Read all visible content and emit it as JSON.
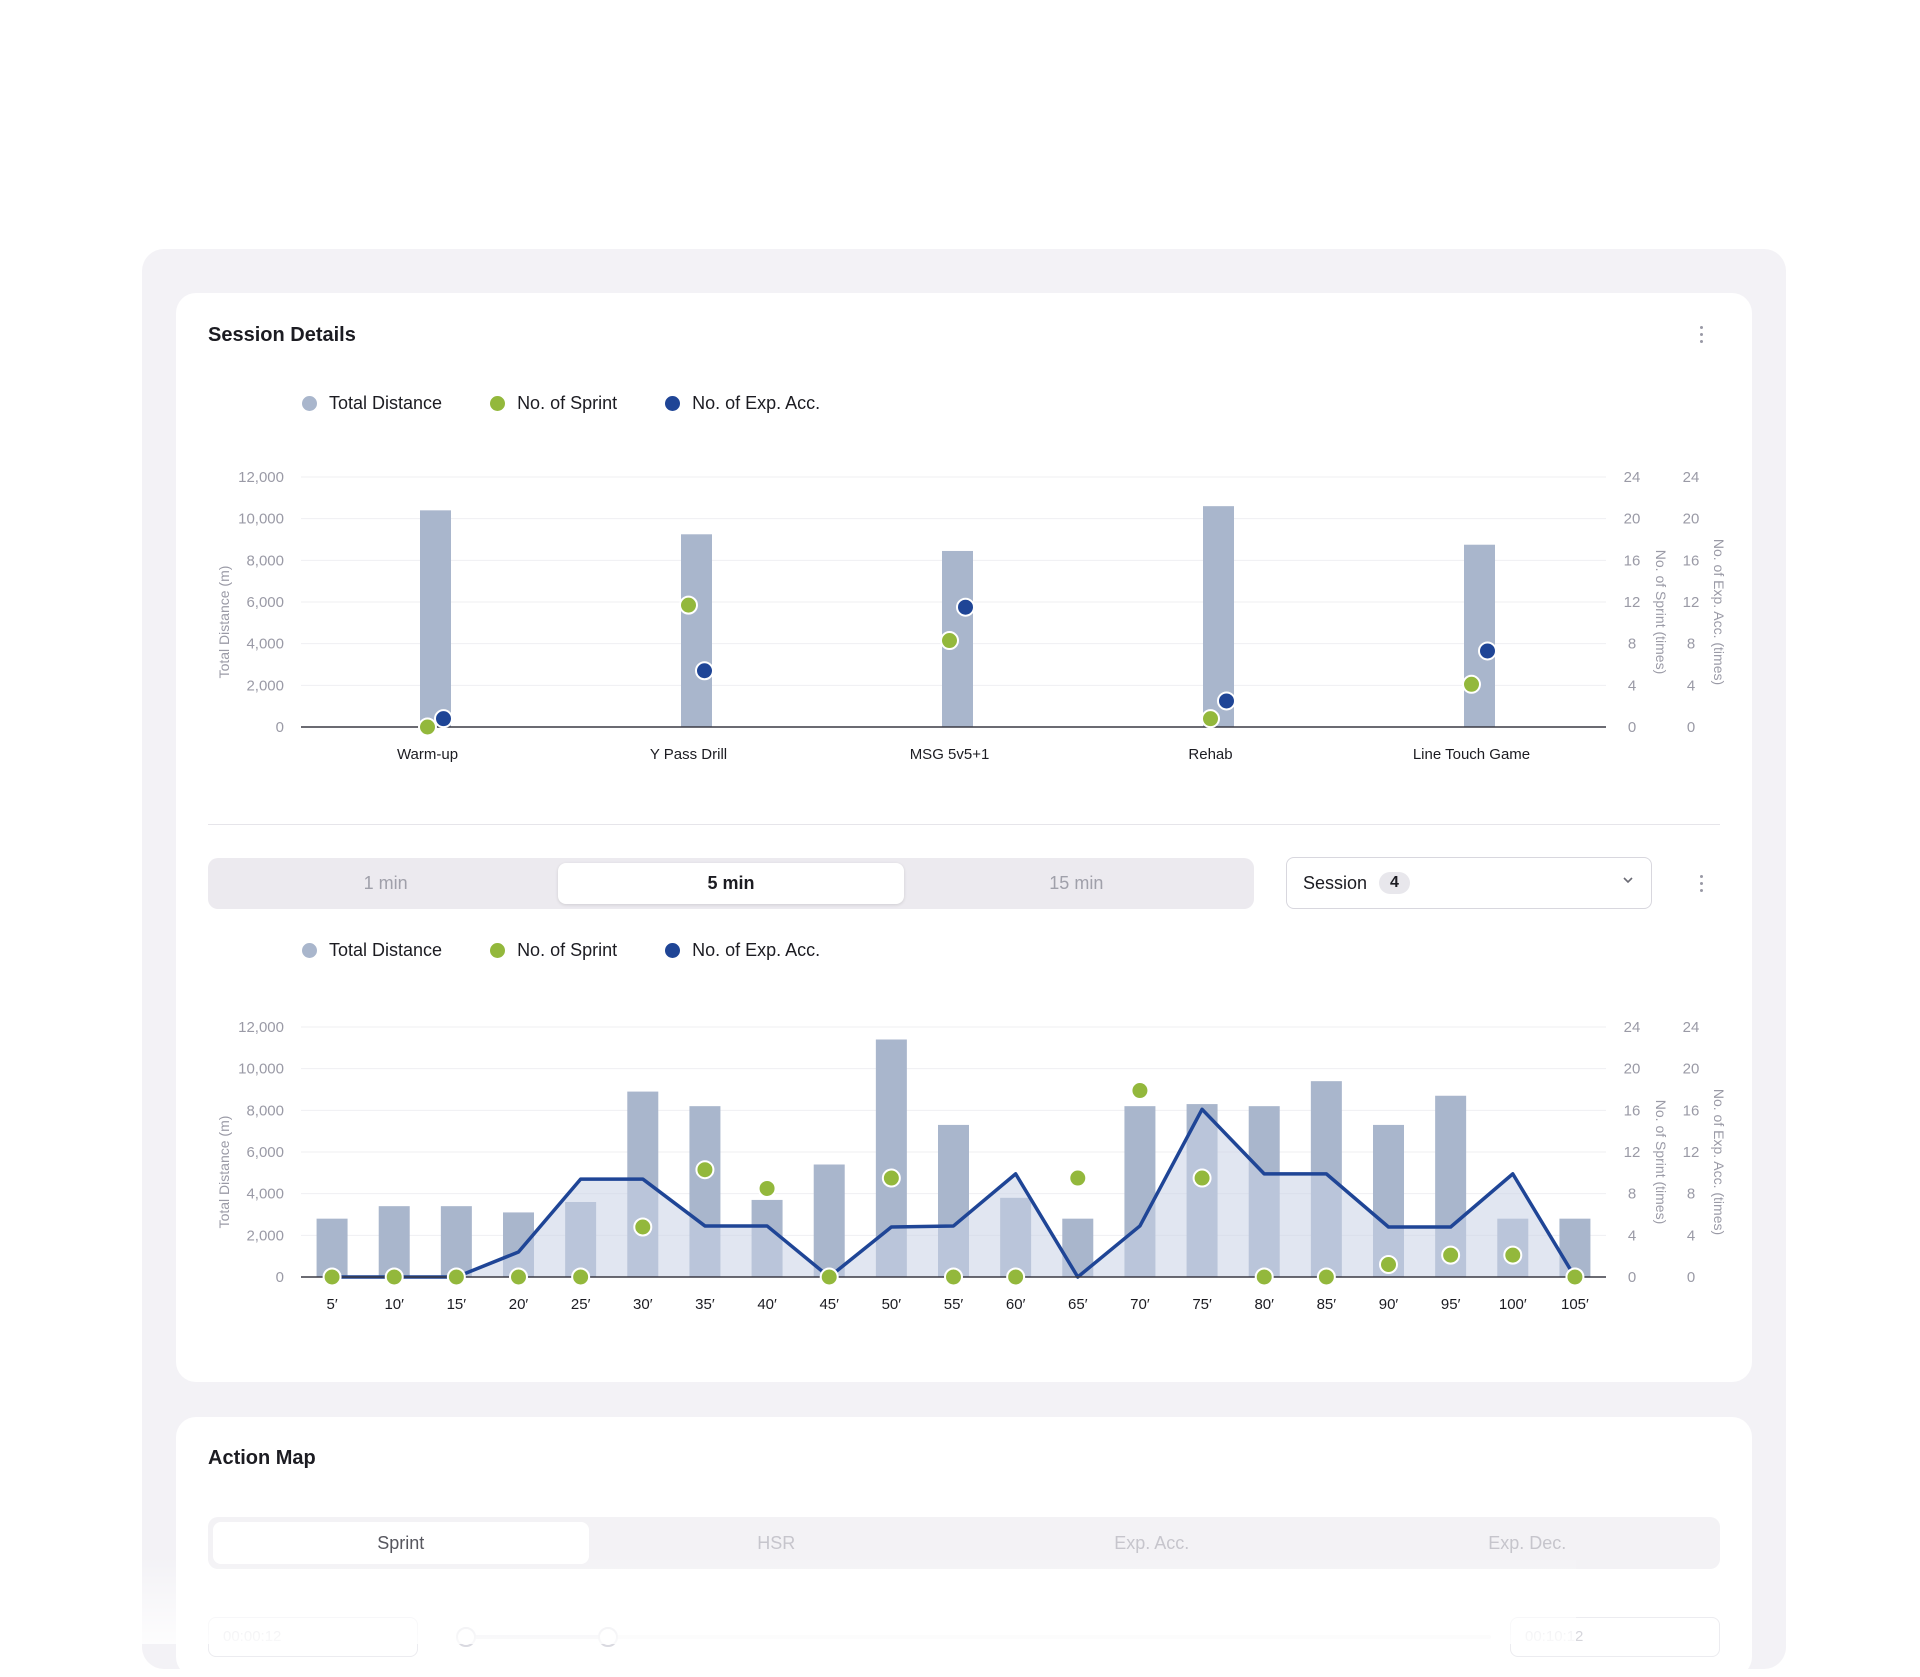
{
  "session_card": {
    "title": "Session Details",
    "legend": [
      {
        "label": "Total Distance",
        "color": "#a9b6cc"
      },
      {
        "label": "No. of Sprint",
        "color": "#93b83c"
      },
      {
        "label": "No. of Exp. Acc.",
        "color": "#1f4596"
      }
    ],
    "interval_tabs": [
      {
        "label": "1 min",
        "active": false
      },
      {
        "label": "5 min",
        "active": true
      },
      {
        "label": "15 min",
        "active": false
      }
    ],
    "session_select": {
      "label": "Session",
      "value": "4"
    }
  },
  "action_card": {
    "title": "Action Map",
    "tabs": [
      {
        "label": "Sprint",
        "active": true
      },
      {
        "label": "HSR",
        "active": false
      },
      {
        "label": "Exp. Acc.",
        "active": false
      },
      {
        "label": "Exp. Dec.",
        "active": false
      }
    ],
    "start_time": "00:00:12",
    "end_time": "00:10:12",
    "range_fraction": [
      0,
      0.07
    ]
  },
  "colors": {
    "bar": "#a9b6cc",
    "bar_overlap": "#8d9fbd",
    "sprint": "#93b83c",
    "acc": "#1f4596",
    "area": "#c9d2e6",
    "grid": "#efeff2",
    "axis_text": "#9a9aa6"
  },
  "chart_data": [
    {
      "type": "bar",
      "categories": [
        "Warm-up",
        "Y Pass Drill",
        "MSG 5v5+1",
        "Rehab",
        "Line Touch Game"
      ],
      "series": [
        {
          "name": "Total Distance",
          "values": [
            10400,
            9250,
            8450,
            10600,
            8750
          ]
        },
        {
          "name": "No. of Sprint",
          "values": [
            0,
            11.7,
            8.3,
            0.8,
            4.1
          ]
        },
        {
          "name": "No. of Exp. Acc.",
          "values": [
            0.8,
            5.4,
            11.5,
            2.5,
            7.3
          ]
        }
      ],
      "ylabel": "Total Distance (m)",
      "y2label": "No. of Sprint (times)",
      "y3label": "No. of Exp. Acc. (times)",
      "ylim": [
        0,
        12000
      ],
      "y2lim": [
        0,
        24
      ],
      "y3lim": [
        0,
        24
      ],
      "yticks": [
        "0",
        "2,000",
        "4,000",
        "6,000",
        "8,000",
        "10,000",
        "12,000"
      ],
      "y2ticks": [
        "0",
        "4",
        "8",
        "12",
        "16",
        "20",
        "24"
      ],
      "y3ticks": [
        "0",
        "4",
        "8",
        "12",
        "16",
        "20",
        "24"
      ],
      "grid": true
    },
    {
      "type": "bar",
      "categories": [
        "5′",
        "10′",
        "15′",
        "20′",
        "25′",
        "30′",
        "35′",
        "40′",
        "45′",
        "50′",
        "55′",
        "60′",
        "65′",
        "70′",
        "75′",
        "80′",
        "85′",
        "90′",
        "95′",
        "100′",
        "105′"
      ],
      "series": [
        {
          "name": "Total Distance",
          "values": [
            2800,
            3400,
            3400,
            3100,
            3600,
            8900,
            8200,
            3700,
            5400,
            11400,
            7300,
            3800,
            2800,
            8200,
            8300,
            8200,
            9400,
            7300,
            8700,
            2800,
            2800
          ]
        },
        {
          "name": "No. of Sprint",
          "values": [
            0,
            0,
            0,
            0,
            0,
            4.8,
            10.3,
            8.5,
            0,
            9.5,
            0,
            0,
            9.5,
            17.9,
            9.5,
            0,
            0,
            1.2,
            2.1,
            2.1,
            0
          ]
        },
        {
          "name": "No. of Exp. Acc.",
          "values": [
            0,
            0,
            0,
            2.4,
            9.4,
            9.4,
            4.9,
            4.9,
            0,
            4.8,
            4.9,
            9.9,
            0,
            4.9,
            16.1,
            9.9,
            9.9,
            4.8,
            4.8,
            9.9,
            0
          ]
        }
      ],
      "ylabel": "Total Distance (m)",
      "y2label": "No. of Sprint (times)",
      "y3label": "No. of Exp. Acc. (times)",
      "ylim": [
        0,
        12000
      ],
      "y2lim": [
        0,
        24
      ],
      "y3lim": [
        0,
        24
      ],
      "yticks": [
        "0",
        "2,000",
        "4,000",
        "6,000",
        "8,000",
        "10,000",
        "12,000"
      ],
      "y2ticks": [
        "0",
        "4",
        "8",
        "12",
        "16",
        "20",
        "24"
      ],
      "y3ticks": [
        "0",
        "4",
        "8",
        "12",
        "16",
        "20",
        "24"
      ],
      "grid": true
    }
  ]
}
